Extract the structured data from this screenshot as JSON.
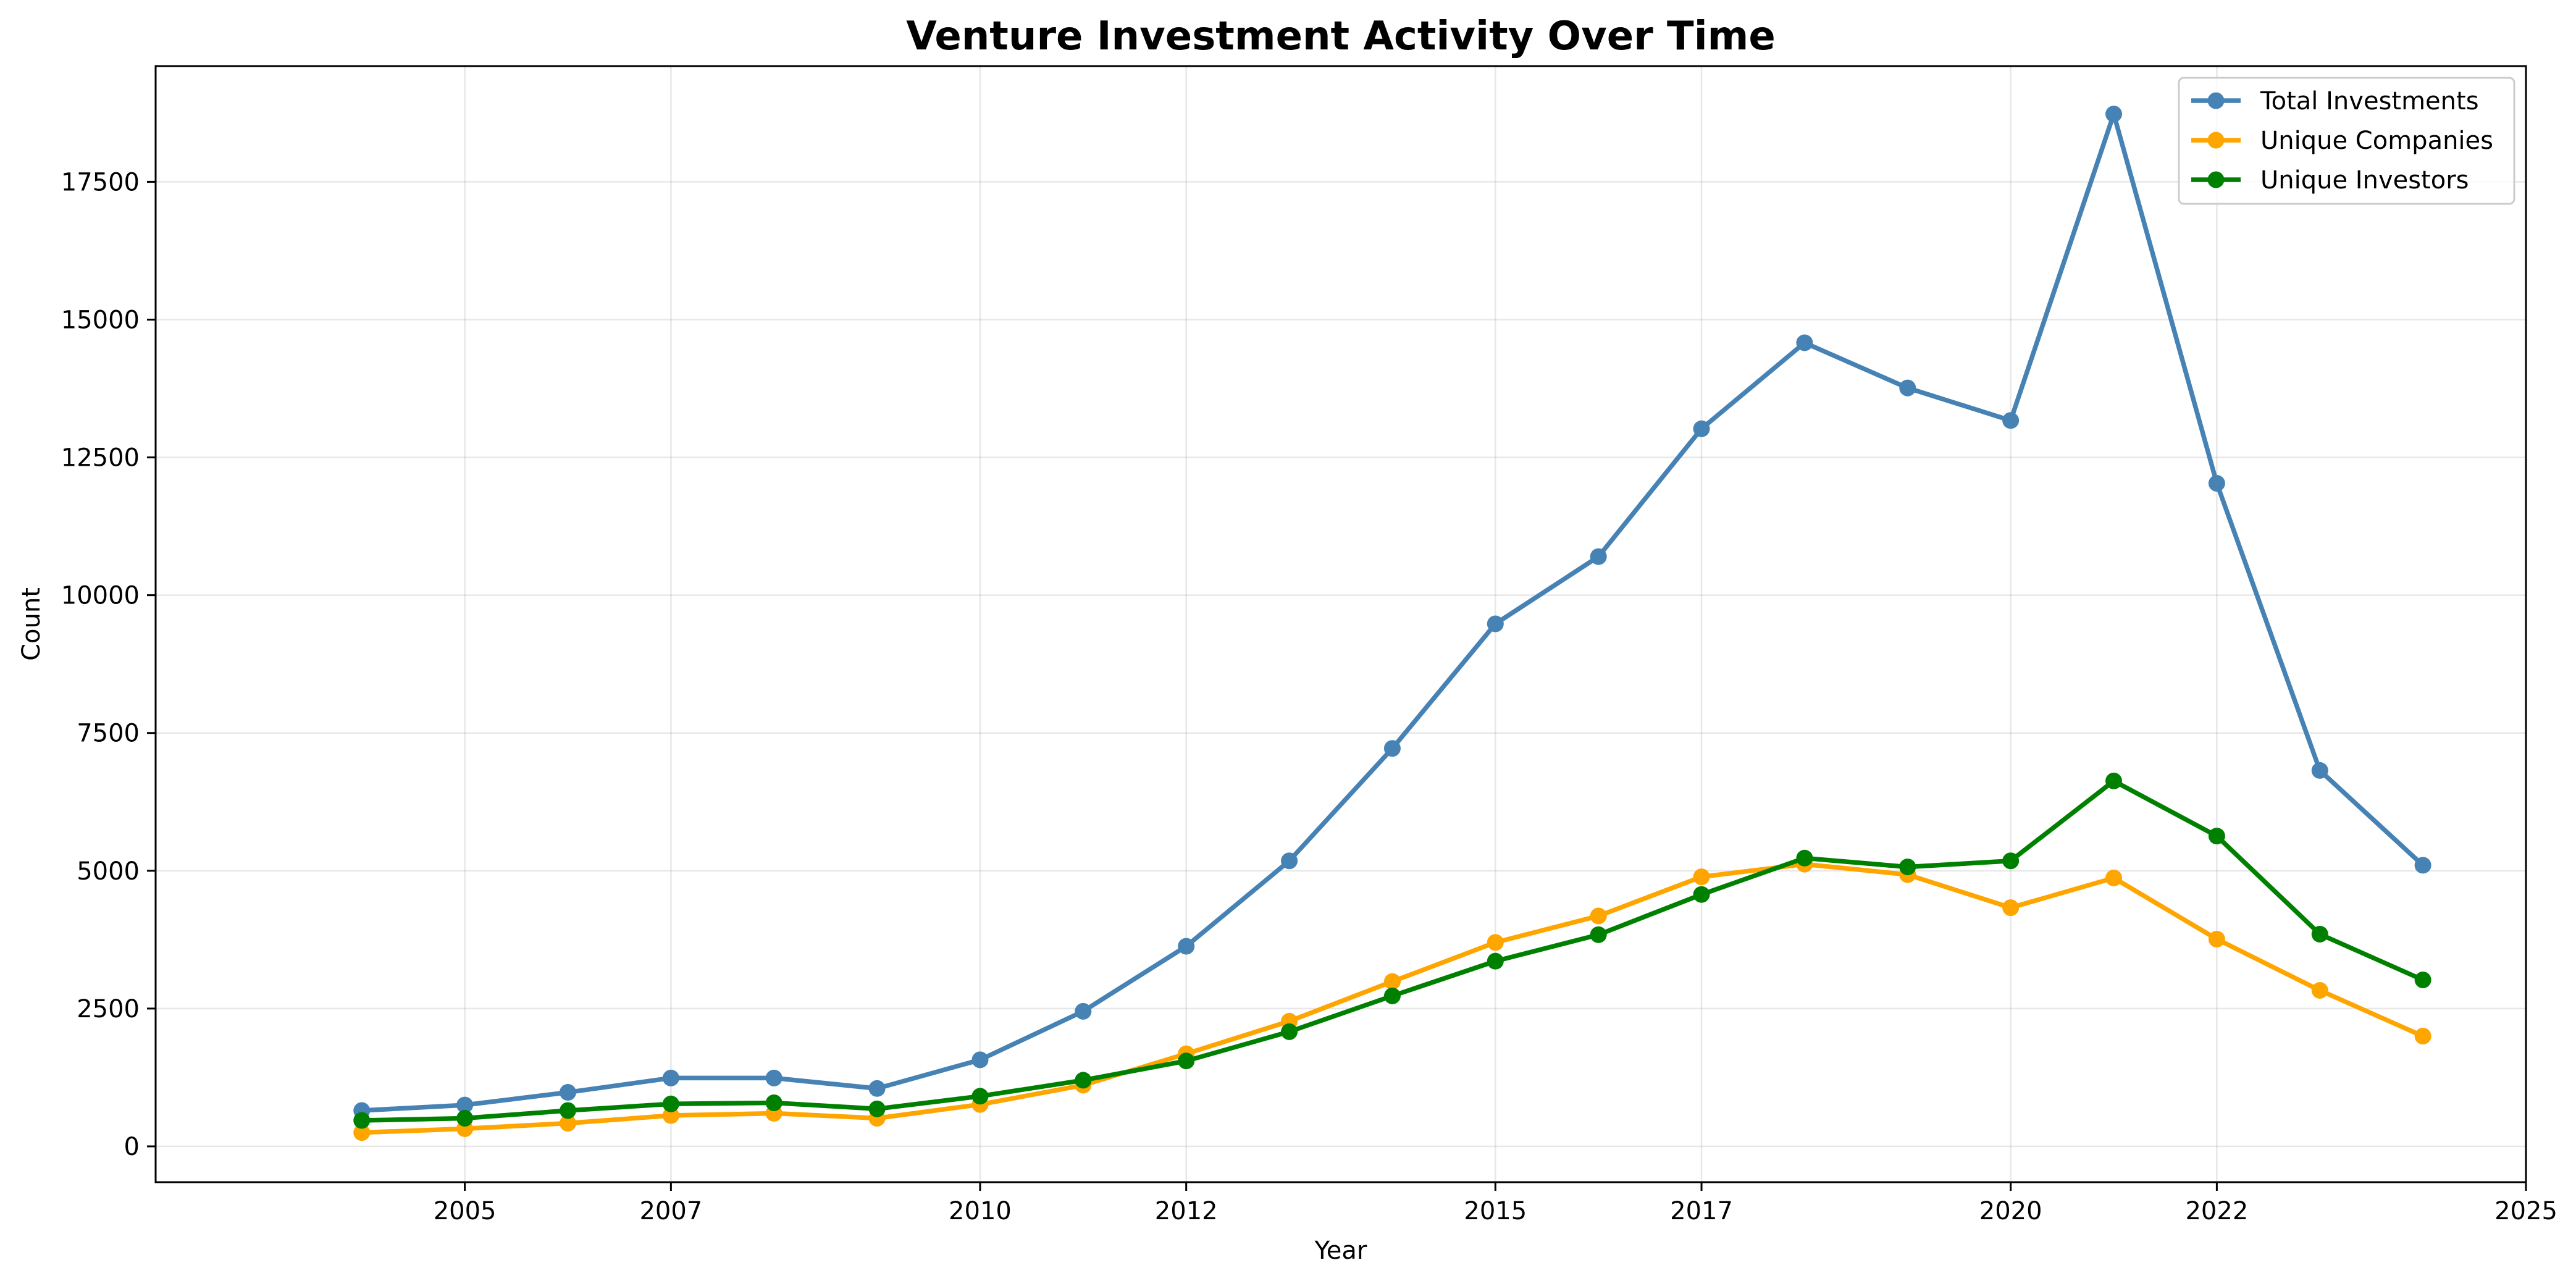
{
  "chart_data": {
    "type": "line",
    "title": "Venture Investment Activity Over Time",
    "xlabel": "Year",
    "ylabel": "Count",
    "xlim": [
      2002.0,
      2025.0
    ],
    "ylim": [
      -650,
      19600
    ],
    "xticks": [
      2005,
      2007,
      2010,
      2012,
      2015,
      2017,
      2020,
      2022,
      2025
    ],
    "xtick_labels": [
      "2005",
      "2007",
      "2010",
      "2012",
      "2015",
      "2017",
      "2020",
      "2022",
      "2025"
    ],
    "yticks": [
      0,
      2500,
      5000,
      7500,
      10000,
      12500,
      15000,
      17500
    ],
    "ytick_labels": [
      "0",
      "2500",
      "5000",
      "7500",
      "10000",
      "12500",
      "15000",
      "17500"
    ],
    "grid": true,
    "legend_position": "top-right",
    "x": [
      2004.0,
      2005.0,
      2006.0,
      2007.0,
      2008.0,
      2009.0,
      2010.0,
      2011.0,
      2012.0,
      2013.0,
      2014.0,
      2015.0,
      2016.0,
      2017.0,
      2018.0,
      2019.0,
      2020.0,
      2021.0,
      2022.0,
      2023.0,
      2024.0
    ],
    "series": [
      {
        "name": "Total Investments",
        "color": "#4682b4",
        "values": [
          650,
          750,
          980,
          1240,
          1240,
          1050,
          1570,
          2450,
          3630,
          5180,
          7220,
          9480,
          10700,
          13020,
          14580,
          13760,
          13170,
          18730,
          12030,
          6820,
          5100
        ]
      },
      {
        "name": "Unique Companies",
        "color": "#ffa500",
        "values": [
          250,
          320,
          420,
          560,
          600,
          510,
          760,
          1110,
          1680,
          2270,
          2990,
          3700,
          4180,
          4890,
          5120,
          4930,
          4330,
          4870,
          3760,
          2830,
          2000
        ]
      },
      {
        "name": "Unique Investors",
        "color": "#008000",
        "values": [
          470,
          510,
          650,
          770,
          790,
          680,
          910,
          1200,
          1550,
          2080,
          2730,
          3360,
          3840,
          4570,
          5230,
          5070,
          5180,
          6630,
          5630,
          3850,
          3020
        ]
      }
    ]
  }
}
